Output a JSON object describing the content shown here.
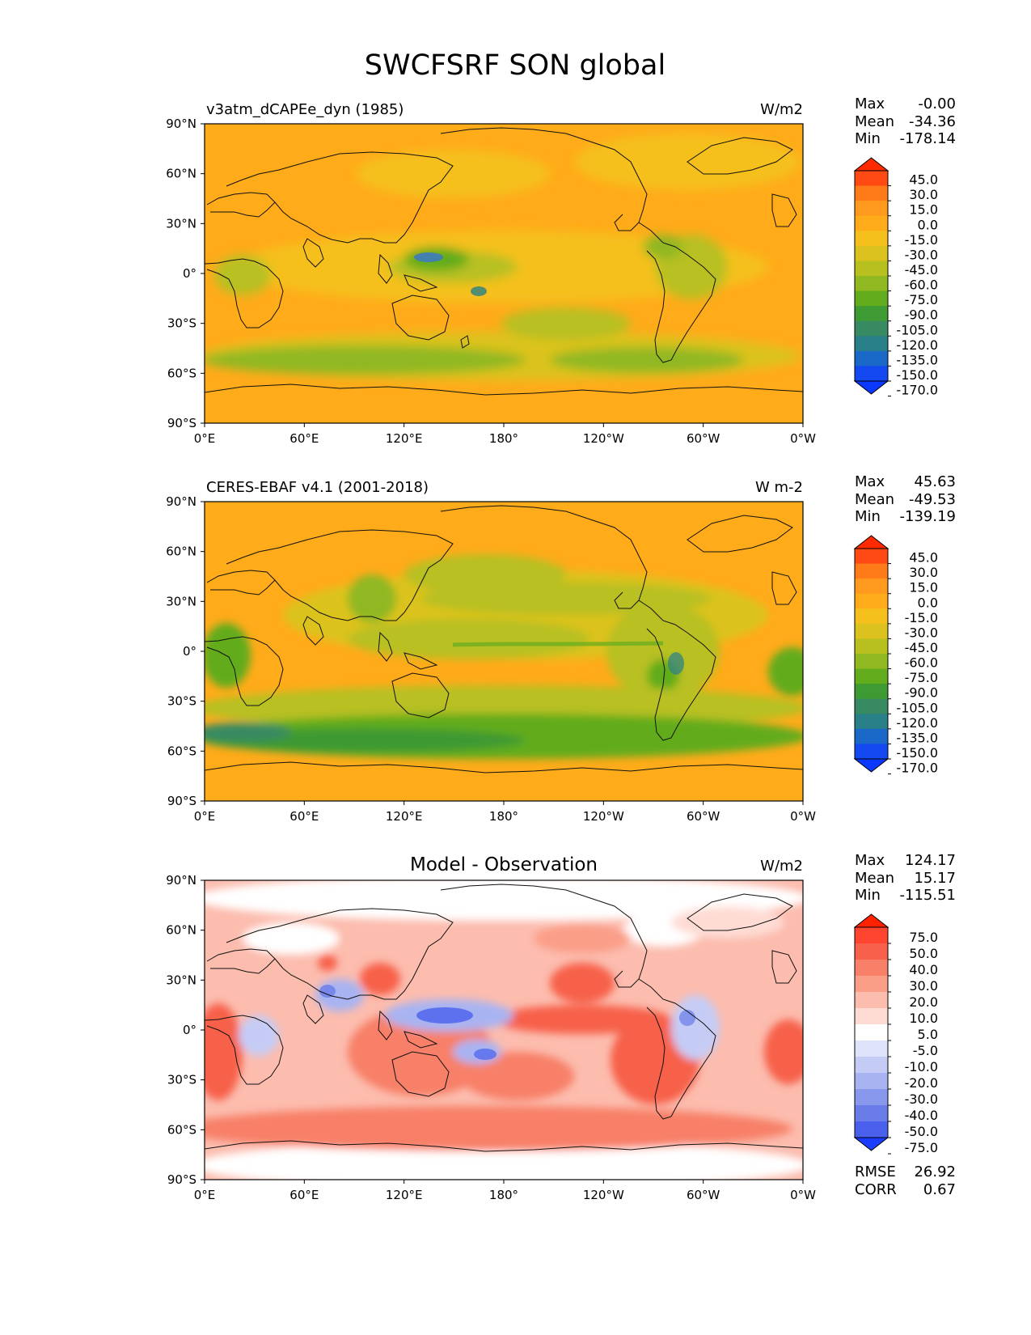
{
  "figure_title": "SWCFSRF SON global",
  "chart_data": [
    {
      "type": "heatmap",
      "panel": "test",
      "title_left": "v3atm_dCAPEe_dyn (1985)",
      "title_center": "",
      "units": "W/m2",
      "stats": [
        {
          "label": "Max",
          "value": "-0.00"
        },
        {
          "label": "Mean",
          "value": "-34.36"
        },
        {
          "label": "Min",
          "value": "-178.14"
        }
      ],
      "colorbar_levels": [
        "45.0",
        "30.0",
        "15.0",
        "0.0",
        "-15.0",
        "-30.0",
        "-45.0",
        "-60.0",
        "-75.0",
        "-90.0",
        "-105.0",
        "-120.0",
        "-135.0",
        "-150.0",
        "-170.0"
      ],
      "colorbar_colors": [
        "#ff2a00",
        "#ff4a14",
        "#ff7a18",
        "#ff9a1e",
        "#ffab1a",
        "#f5c01c",
        "#dcc21e",
        "#b8c020",
        "#90b820",
        "#62ac1e",
        "#3e9a32",
        "#388a62",
        "#2a8088",
        "#1a68c8",
        "#1448f0",
        "#0a38ff"
      ],
      "xlim": [
        0,
        360
      ],
      "ylim": [
        -90,
        90
      ],
      "xticks": [
        "0°E",
        "60°E",
        "120°E",
        "180°",
        "120°W",
        "60°W",
        "0°W"
      ],
      "yticks": [
        "90°N",
        "60°N",
        "30°N",
        "0°",
        "30°S",
        "60°S",
        "90°S"
      ]
    },
    {
      "type": "heatmap",
      "panel": "reference",
      "title_left": "CERES-EBAF v4.1 (2001-2018)",
      "title_center": "",
      "units": "W m-2",
      "stats": [
        {
          "label": "Max",
          "value": "45.63"
        },
        {
          "label": "Mean",
          "value": "-49.53"
        },
        {
          "label": "Min",
          "value": "-139.19"
        }
      ],
      "colorbar_levels": [
        "45.0",
        "30.0",
        "15.0",
        "0.0",
        "-15.0",
        "-30.0",
        "-45.0",
        "-60.0",
        "-75.0",
        "-90.0",
        "-105.0",
        "-120.0",
        "-135.0",
        "-150.0",
        "-170.0"
      ],
      "colorbar_colors": [
        "#ff2a00",
        "#ff4a14",
        "#ff7a18",
        "#ff9a1e",
        "#ffab1a",
        "#f5c01c",
        "#dcc21e",
        "#b8c020",
        "#90b820",
        "#62ac1e",
        "#3e9a32",
        "#388a62",
        "#2a8088",
        "#1a68c8",
        "#1448f0",
        "#0a38ff"
      ],
      "xlim": [
        0,
        360
      ],
      "ylim": [
        -90,
        90
      ],
      "xticks": [
        "0°E",
        "60°E",
        "120°E",
        "180°",
        "120°W",
        "60°W",
        "0°W"
      ],
      "yticks": [
        "90°N",
        "60°N",
        "30°N",
        "0°",
        "30°S",
        "60°S",
        "90°S"
      ]
    },
    {
      "type": "heatmap",
      "panel": "difference",
      "title_left": "",
      "title_center": "Model - Observation",
      "units": "W/m2",
      "stats": [
        {
          "label": "Max",
          "value": "124.17"
        },
        {
          "label": "Mean",
          "value": "15.17"
        },
        {
          "label": "Min",
          "value": "-115.51"
        }
      ],
      "bottom_stats": [
        {
          "label": "RMSE",
          "value": "26.92"
        },
        {
          "label": "CORR",
          "value": "0.67"
        }
      ],
      "colorbar_levels": [
        "75.0",
        "50.0",
        "40.0",
        "30.0",
        "20.0",
        "10.0",
        "5.0",
        "-5.0",
        "-10.0",
        "-20.0",
        "-30.0",
        "-40.0",
        "-50.0",
        "-75.0"
      ],
      "colorbar_colors": [
        "#ff2200",
        "#ff4430",
        "#f7604a",
        "#f88068",
        "#fa9e88",
        "#fcbcae",
        "#fedcd4",
        "#ffffff",
        "#e0e4fa",
        "#c4ccf6",
        "#a8b4f2",
        "#8898ec",
        "#6a7ce8",
        "#4a60ec",
        "#1a3cff"
      ],
      "xlim": [
        0,
        360
      ],
      "ylim": [
        -90,
        90
      ],
      "xticks": [
        "0°E",
        "60°E",
        "120°E",
        "180°",
        "120°W",
        "60°W",
        "0°W"
      ],
      "yticks": [
        "90°N",
        "60°N",
        "30°N",
        "0°",
        "30°S",
        "60°S",
        "90°S"
      ]
    }
  ]
}
